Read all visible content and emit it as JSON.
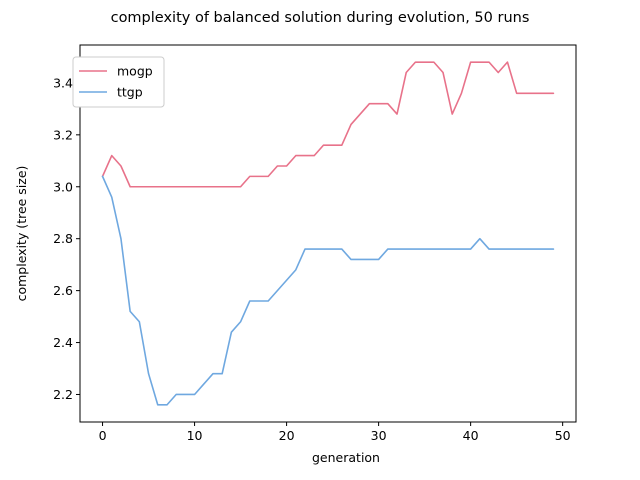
{
  "chart_data": {
    "type": "line",
    "title": "complexity of balanced solution during evolution, 50 runs",
    "xlabel": "generation",
    "ylabel": "complexity (tree size)",
    "xlim": [
      -2.45,
      51.45
    ],
    "ylim": [
      2.094,
      3.546
    ],
    "xticks": [
      0,
      10,
      20,
      30,
      40,
      50
    ],
    "yticks": [
      2.2,
      2.4,
      2.6,
      2.8,
      3.0,
      3.2,
      3.4
    ],
    "ytick_labels": [
      "2.2",
      "2.4",
      "2.6",
      "2.8",
      "3.0",
      "3.2",
      "3.4"
    ],
    "grid": false,
    "legend_position": "upper-left",
    "x": [
      0,
      1,
      2,
      3,
      4,
      5,
      6,
      7,
      8,
      9,
      10,
      11,
      12,
      13,
      14,
      15,
      16,
      17,
      18,
      19,
      20,
      21,
      22,
      23,
      24,
      25,
      26,
      27,
      28,
      29,
      30,
      31,
      32,
      33,
      34,
      35,
      36,
      37,
      38,
      39,
      40,
      41,
      42,
      43,
      44,
      45,
      46,
      47,
      48,
      49
    ],
    "series": [
      {
        "name": "mogp",
        "color": "#e8728a",
        "values": [
          3.04,
          3.12,
          3.08,
          3.0,
          3.0,
          3.0,
          3.0,
          3.0,
          3.0,
          3.0,
          3.0,
          3.0,
          3.0,
          3.0,
          3.0,
          3.0,
          3.04,
          3.04,
          3.04,
          3.08,
          3.08,
          3.12,
          3.12,
          3.12,
          3.16,
          3.16,
          3.16,
          3.24,
          3.28,
          3.32,
          3.32,
          3.32,
          3.28,
          3.44,
          3.48,
          3.48,
          3.48,
          3.44,
          3.28,
          3.36,
          3.48,
          3.48,
          3.48,
          3.44,
          3.48,
          3.36,
          3.36,
          3.36,
          3.36,
          3.36
        ]
      },
      {
        "name": "ttgp",
        "color": "#6fa8e0",
        "values": [
          3.04,
          2.96,
          2.8,
          2.52,
          2.48,
          2.28,
          2.16,
          2.16,
          2.2,
          2.2,
          2.2,
          2.24,
          2.28,
          2.28,
          2.44,
          2.48,
          2.56,
          2.56,
          2.56,
          2.6,
          2.64,
          2.68,
          2.76,
          2.76,
          2.76,
          2.76,
          2.76,
          2.72,
          2.72,
          2.72,
          2.72,
          2.76,
          2.76,
          2.76,
          2.76,
          2.76,
          2.76,
          2.76,
          2.76,
          2.76,
          2.76,
          2.8,
          2.76,
          2.76,
          2.76,
          2.76,
          2.76,
          2.76,
          2.76,
          2.76
        ]
      }
    ]
  }
}
